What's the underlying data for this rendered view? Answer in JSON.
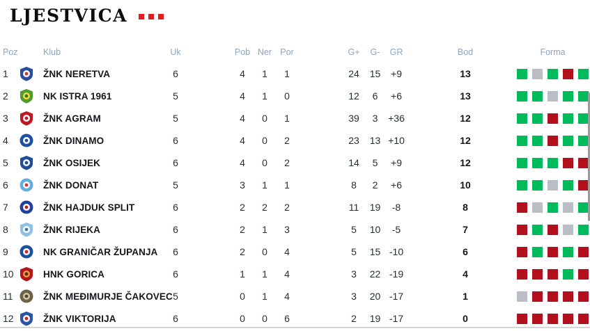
{
  "title": {
    "text": "LJESTVICA",
    "dot_count": 3,
    "dot_color": "#e41b23"
  },
  "columns": {
    "poz": "Poz",
    "klub": "Klub",
    "uk": "Uk",
    "pob": "Pob",
    "ner": "Ner",
    "por": "Por",
    "gplus": "G+",
    "gminus": "G-",
    "gr": "GR",
    "bod": "Bod",
    "forma": "Forma"
  },
  "form_colors": {
    "W": "#00bb5c",
    "D": "#b9bfc5",
    "L": "#b2101c"
  },
  "rows": [
    {
      "poz": "1",
      "klub": "ŽNK NERETVA",
      "uk": "6",
      "pob": "4",
      "ner": "1",
      "por": "1",
      "gplus": "24",
      "gminus": "15",
      "gr": "+9",
      "bod": "13",
      "forma": [
        "W",
        "D",
        "W",
        "L",
        "W"
      ],
      "logo": {
        "shape": "shield",
        "base": "#2b4d9d",
        "inner": "#ffffff",
        "accent": "#cf3339"
      }
    },
    {
      "poz": "2",
      "klub": "NK ISTRA 1961",
      "uk": "5",
      "pob": "4",
      "ner": "1",
      "por": "0",
      "gplus": "12",
      "gminus": "6",
      "gr": "+6",
      "bod": "13",
      "forma": [
        "W",
        "W",
        "D",
        "W",
        "W"
      ],
      "logo": {
        "shape": "shield",
        "base": "#4f9e2d",
        "inner": "#f5d93e",
        "accent": "#2c7a2b"
      }
    },
    {
      "poz": "3",
      "klub": "ŽNK AGRAM",
      "uk": "5",
      "pob": "4",
      "ner": "0",
      "por": "1",
      "gplus": "39",
      "gminus": "3",
      "gr": "+36",
      "bod": "12",
      "forma": [
        "W",
        "W",
        "L",
        "W",
        "W"
      ],
      "logo": {
        "shape": "shield",
        "base": "#c01722",
        "inner": "#ffffff",
        "accent": "#c01722"
      }
    },
    {
      "poz": "4",
      "klub": "ŽNK DINAMO",
      "uk": "6",
      "pob": "4",
      "ner": "0",
      "por": "2",
      "gplus": "23",
      "gminus": "13",
      "gr": "+10",
      "bod": "12",
      "forma": [
        "W",
        "W",
        "L",
        "W",
        "W"
      ],
      "logo": {
        "shape": "circle",
        "base": "#1e4fa1",
        "inner": "#ffffff",
        "accent": "#1e4fa1"
      }
    },
    {
      "poz": "5",
      "klub": "ŽNK OSIJEK",
      "uk": "6",
      "pob": "4",
      "ner": "0",
      "por": "2",
      "gplus": "14",
      "gminus": "5",
      "gr": "+9",
      "bod": "12",
      "forma": [
        "W",
        "W",
        "W",
        "L",
        "L"
      ],
      "logo": {
        "shape": "shield",
        "base": "#1f4d9c",
        "inner": "#ffffff",
        "accent": "#1f4d9c"
      }
    },
    {
      "poz": "6",
      "klub": "ŽNK DONAT",
      "uk": "5",
      "pob": "3",
      "ner": "1",
      "por": "1",
      "gplus": "8",
      "gminus": "2",
      "gr": "+6",
      "bod": "10",
      "forma": [
        "W",
        "W",
        "D",
        "W",
        "L"
      ],
      "logo": {
        "shape": "circle",
        "base": "#63aede",
        "inner": "#ffffff",
        "accent": "#cf3339"
      }
    },
    {
      "poz": "7",
      "klub": "ŽNK HAJDUK SPLIT",
      "uk": "6",
      "pob": "2",
      "ner": "2",
      "por": "2",
      "gplus": "11",
      "gminus": "19",
      "gr": "-8",
      "bod": "8",
      "forma": [
        "L",
        "D",
        "W",
        "D",
        "W"
      ],
      "logo": {
        "shape": "circle",
        "base": "#20409a",
        "inner": "#ffffff",
        "accent": "#c8131e"
      }
    },
    {
      "poz": "8",
      "klub": "ŽNK RIJEKA",
      "uk": "6",
      "pob": "2",
      "ner": "1",
      "por": "3",
      "gplus": "5",
      "gminus": "10",
      "gr": "-5",
      "bod": "7",
      "forma": [
        "L",
        "W",
        "L",
        "D",
        "W"
      ],
      "logo": {
        "shape": "shield",
        "base": "#8fc1e4",
        "inner": "#ffffff",
        "accent": "#3a7ab8"
      }
    },
    {
      "poz": "9",
      "klub": "NK GRANIČAR ŽUPANJA",
      "uk": "6",
      "pob": "2",
      "ner": "0",
      "por": "4",
      "gplus": "5",
      "gminus": "15",
      "gr": "-10",
      "bod": "6",
      "forma": [
        "L",
        "W",
        "L",
        "W",
        "L"
      ],
      "logo": {
        "shape": "circle",
        "base": "#1d4f9e",
        "inner": "#ffffff",
        "accent": "#cf1f2a"
      }
    },
    {
      "poz": "10",
      "klub": "HNK GORICA",
      "uk": "6",
      "pob": "1",
      "ner": "1",
      "por": "4",
      "gplus": "3",
      "gminus": "22",
      "gr": "-19",
      "bod": "4",
      "forma": [
        "L",
        "L",
        "L",
        "W",
        "L"
      ],
      "logo": {
        "shape": "shield",
        "base": "#b5131e",
        "inner": "#d9a33a",
        "accent": "#7a1313"
      }
    },
    {
      "poz": "11",
      "klub": "ŽNK MEĐIMURJE ČAKOVEC",
      "uk": "5",
      "pob": "0",
      "ner": "1",
      "por": "4",
      "gplus": "3",
      "gminus": "20",
      "gr": "-17",
      "bod": "1",
      "forma": [
        "D",
        "L",
        "L",
        "L",
        "L"
      ],
      "logo": {
        "shape": "circle",
        "base": "#6e6246",
        "inner": "#cfc6a8",
        "accent": "#4a4130"
      }
    },
    {
      "poz": "12",
      "klub": "ŽNK VIKTORIJA",
      "uk": "6",
      "pob": "0",
      "ner": "0",
      "por": "6",
      "gplus": "2",
      "gminus": "19",
      "gr": "-17",
      "bod": "0",
      "forma": [
        "L",
        "L",
        "L",
        "L",
        "L"
      ],
      "logo": {
        "shape": "shield",
        "base": "#2a55a8",
        "inner": "#ffffff",
        "accent": "#cf1f2a"
      }
    }
  ]
}
